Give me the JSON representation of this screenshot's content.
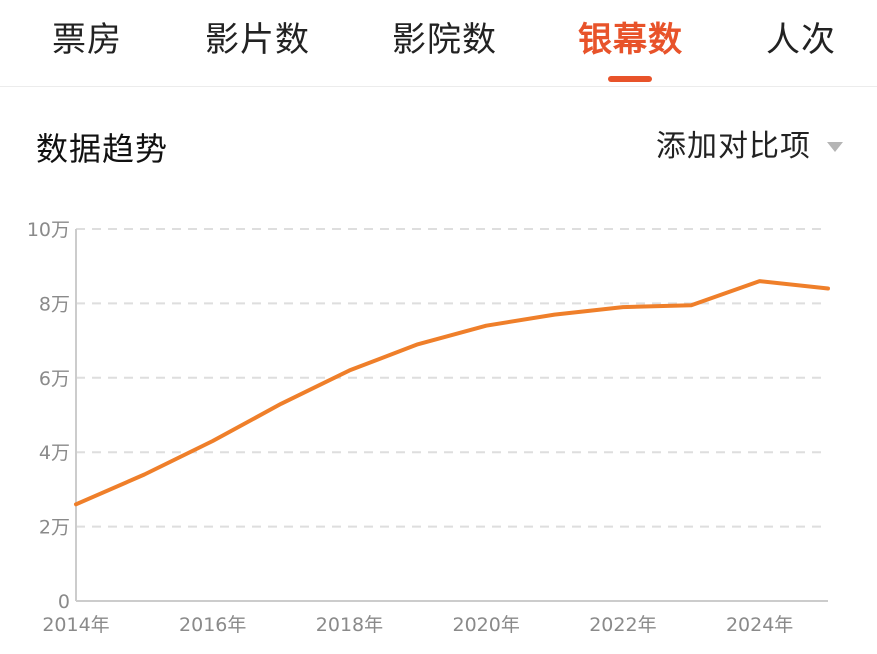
{
  "tabs": [
    {
      "label": "票房",
      "active": false
    },
    {
      "label": "影片数",
      "active": false
    },
    {
      "label": "影院数",
      "active": false
    },
    {
      "label": "银幕数",
      "active": true
    },
    {
      "label": "人次",
      "active": false
    }
  ],
  "section": {
    "title": "数据趋势",
    "compare_label": "添加对比项"
  },
  "colors": {
    "accent": "#e8532a",
    "line": "#ef7f2a",
    "grid": "#dedede",
    "axis": "#cccccc",
    "tick": "#8a8a8a"
  },
  "chart_data": {
    "type": "line",
    "title": "",
    "xlabel": "",
    "ylabel": "",
    "x": [
      2014,
      2015,
      2016,
      2017,
      2018,
      2019,
      2020,
      2021,
      2022,
      2023,
      2024,
      2025
    ],
    "series": [
      {
        "values": [
          2.6,
          3.4,
          4.3,
          5.3,
          6.2,
          6.9,
          7.4,
          7.7,
          7.9,
          7.95,
          8.6,
          8.4
        ]
      }
    ],
    "ylim": [
      0,
      10
    ],
    "yticks": [
      0,
      2,
      4,
      6,
      8,
      10
    ],
    "ytick_labels": [
      "0",
      "2万",
      "4万",
      "6万",
      "8万",
      "10万"
    ],
    "xticks": [
      2014,
      2016,
      2018,
      2020,
      2022,
      2024
    ],
    "xtick_labels": [
      "2014年",
      "2016年",
      "2018年",
      "2020年",
      "2022年",
      "2024年"
    ],
    "grid": true
  }
}
